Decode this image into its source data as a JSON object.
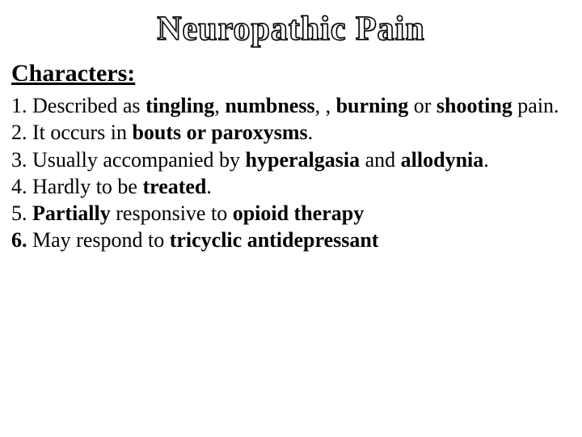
{
  "title": "Neuropathic Pain",
  "heading": "Characters:",
  "lines": {
    "l1a": "1. Described as ",
    "l1b": "tingling",
    "l1c": ", ",
    "l1d": "numbness",
    "l1e": ", , ",
    "l1f": "burning",
    "l1g": " or ",
    "l1h": "shooting",
    "l1i": " pain.",
    "l2a": "2. It occurs in ",
    "l2b": "bouts or paroxysms",
    "l2c": ".",
    "l3a": "3. Usually accompanied by ",
    "l3b": "hyperalgasia",
    "l3c": " and ",
    "l3d": "allodynia",
    "l3e": ".",
    "l4a": "4. Hardly to be ",
    "l4b": "treated",
    "l4c": ".",
    "l5a": "5. ",
    "l5b": "Partially",
    "l5c": " responsive to ",
    "l5d": "opioid therapy",
    "l6a": "6. ",
    "l6b": "May respond to ",
    "l6c": "tricyclic antidepressant"
  },
  "colors": {
    "background": "#ffffff",
    "text": "#000000",
    "title_fill": "#ffffff",
    "title_stroke": "#000000"
  },
  "typography": {
    "title_fontsize": 42,
    "heading_fontsize": 30,
    "body_fontsize": 26,
    "font_family": "Georgia, Times New Roman, serif"
  }
}
